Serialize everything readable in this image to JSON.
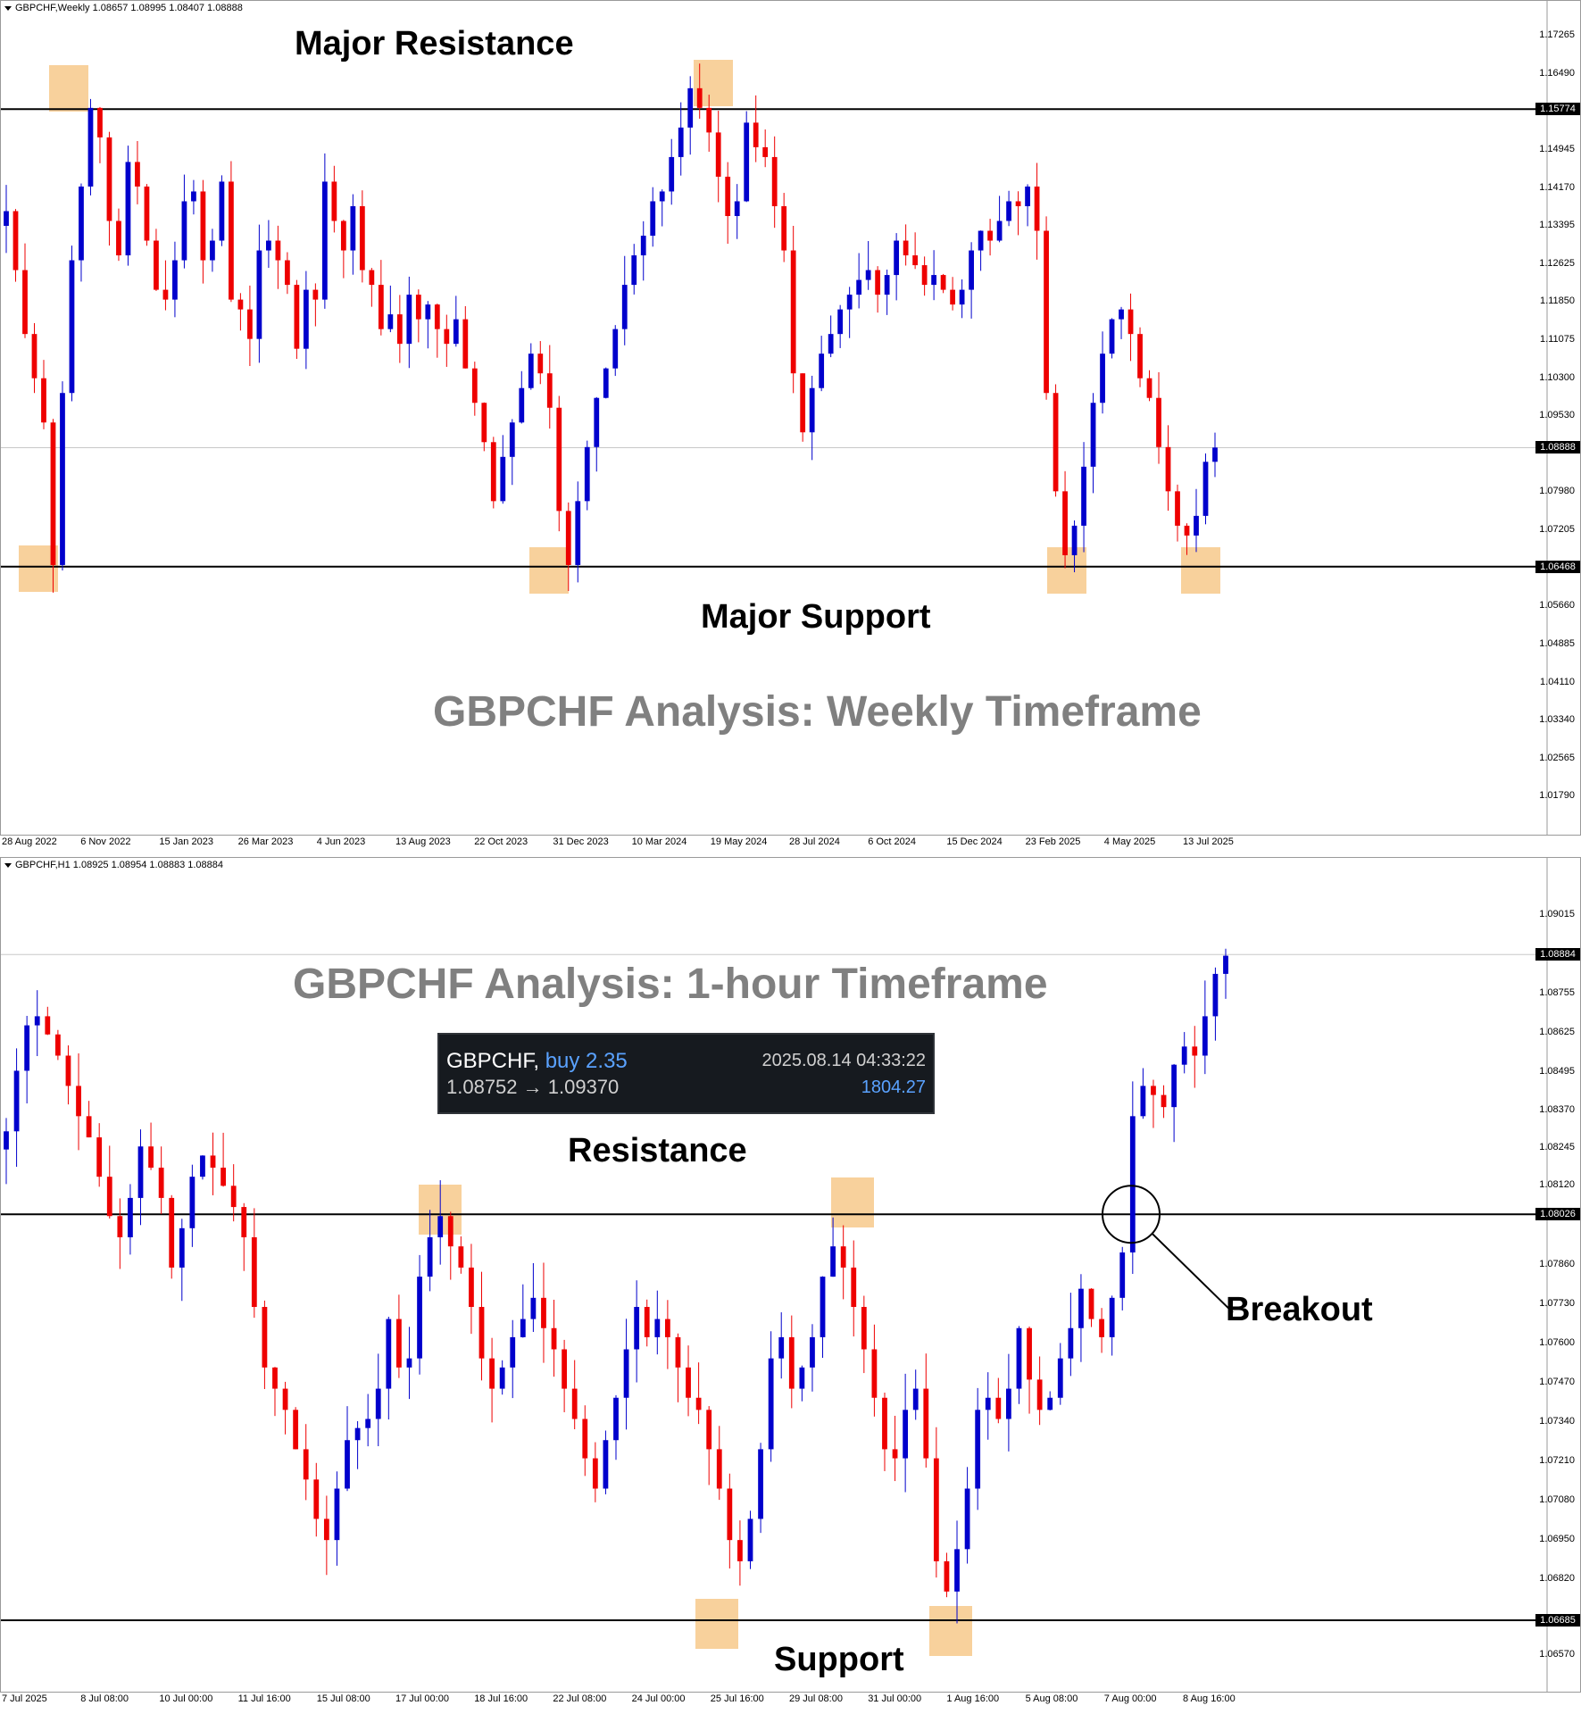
{
  "weekly": {
    "header": "GBPCHF,Weekly  1.08657 1.08995 1.08407 1.08888",
    "title": "GBPCHF Analysis: Weekly Timeframe",
    "resistance_label": "Major Resistance",
    "support_label": "Major Support",
    "resistance_tag": "1.15774",
    "support_tag": "1.06468",
    "current_tag": "1.08888",
    "y_ticks": [
      "1.17265",
      "1.16490",
      "1.15774",
      "1.14945",
      "1.14170",
      "1.13395",
      "1.12625",
      "1.11850",
      "1.11075",
      "1.10300",
      "1.09530",
      "1.08888",
      "1.07980",
      "1.07205",
      "1.06468",
      "1.05660",
      "1.04885",
      "1.04110",
      "1.03340",
      "1.02565",
      "1.01790"
    ],
    "x_ticks": [
      "28 Aug 2022",
      "6 Nov 2022",
      "15 Jan 2023",
      "26 Mar 2023",
      "4 Jun 2023",
      "13 Aug 2023",
      "22 Oct 2023",
      "31 Dec 2023",
      "10 Mar 2024",
      "19 May 2024",
      "28 Jul 2024",
      "6 Oct 2024",
      "15 Dec 2024",
      "23 Feb 2025",
      "4 May 2025",
      "13 Jul 2025"
    ]
  },
  "hourly": {
    "header": "GBPCHF,H1  1.08925 1.08954 1.08883 1.08884",
    "title": "GBPCHF Analysis: 1-hour Timeframe",
    "resistance_label": "Resistance",
    "support_label": "Support",
    "breakout_label": "Breakout",
    "resistance_tag": "1.08026",
    "support_tag": "1.06685",
    "current_tag": "1.08884",
    "y_ticks": [
      "1.09015",
      "1.08884",
      "1.08755",
      "1.08625",
      "1.08495",
      "1.08370",
      "1.08245",
      "1.08120",
      "1.08026",
      "1.07860",
      "1.07730",
      "1.07600",
      "1.07470",
      "1.07340",
      "1.07210",
      "1.07080",
      "1.06950",
      "1.06820",
      "1.06685",
      "1.06570"
    ],
    "x_ticks": [
      "7 Jul 2025",
      "8 Jul 08:00",
      "10 Jul 00:00",
      "11 Jul 16:00",
      "15 Jul 08:00",
      "17 Jul 00:00",
      "18 Jul 16:00",
      "22 Jul 08:00",
      "24 Jul 00:00",
      "25 Jul 16:00",
      "29 Jul 08:00",
      "31 Jul 00:00",
      "1 Aug 16:00",
      "5 Aug 08:00",
      "7 Aug 00:00",
      "8 Aug 16:00"
    ]
  },
  "trade": {
    "symbol": "GBPCHF,",
    "side": "buy 2.35",
    "prices": "1.08752 → 1.09370",
    "time": "2025.08.14 04:33:22",
    "profit": "1804.27"
  },
  "colors": {
    "bull": "#0000cc",
    "bear": "#ee0000",
    "highlight": "#f7c98b",
    "title_gray": "#808080"
  },
  "chart_data": [
    {
      "type": "candlestick",
      "title": "GBPCHF Analysis: Weekly Timeframe",
      "symbol": "GBPCHF",
      "timeframe": "Weekly",
      "ohlc_last": {
        "open": 1.08657,
        "high": 1.08995,
        "low": 1.08407,
        "close": 1.08888
      },
      "ylim": [
        1.0145,
        1.1765
      ],
      "levels": {
        "resistance": 1.15774,
        "support": 1.06468,
        "current": 1.08888
      },
      "highlights": [
        "Aug 2022 high",
        "Jan 2022 low",
        "Dec 2023 low",
        "May 2024 high",
        "Feb 2025 low",
        "Jul 2025 low"
      ],
      "closes": [
        1.137,
        1.125,
        1.112,
        1.103,
        1.094,
        1.065,
        1.1,
        1.127,
        1.142,
        1.158,
        1.152,
        1.135,
        1.128,
        1.147,
        1.142,
        1.131,
        1.121,
        1.119,
        1.127,
        1.139,
        1.141,
        1.127,
        1.131,
        1.143,
        1.119,
        1.117,
        1.111,
        1.129,
        1.131,
        1.127,
        1.122,
        1.109,
        1.121,
        1.119,
        1.143,
        1.135,
        1.129,
        1.138,
        1.125,
        1.122,
        1.113,
        1.116,
        1.11,
        1.12,
        1.115,
        1.118,
        1.113,
        1.11,
        1.115,
        1.105,
        1.098,
        1.09,
        1.078,
        1.087,
        1.094,
        1.101,
        1.108,
        1.104,
        1.097,
        1.076,
        1.065,
        1.078,
        1.089,
        1.099,
        1.105,
        1.113,
        1.122,
        1.128,
        1.132,
        1.139,
        1.141,
        1.148,
        1.154,
        1.162,
        1.158,
        1.153,
        1.144,
        1.136,
        1.139,
        1.155,
        1.15,
        1.148,
        1.138,
        1.129,
        1.104,
        1.092,
        1.101,
        1.108,
        1.112,
        1.117,
        1.12,
        1.123,
        1.125,
        1.12,
        1.124,
        1.131,
        1.128,
        1.126,
        1.122,
        1.124,
        1.121,
        1.118,
        1.121,
        1.129,
        1.133,
        1.131,
        1.135,
        1.139,
        1.138,
        1.142,
        1.133,
        1.1,
        1.08,
        1.067,
        1.073,
        1.085,
        1.098,
        1.108,
        1.115,
        1.117,
        1.112,
        1.103,
        1.099,
        1.089,
        1.08,
        1.073,
        1.071,
        1.075,
        1.086,
        1.0889
      ]
    },
    {
      "type": "candlestick",
      "title": "GBPCHF Analysis: 1-hour Timeframe",
      "symbol": "GBPCHF",
      "timeframe": "H1",
      "ohlc_last": {
        "open": 1.08925,
        "high": 1.08954,
        "low": 1.08883,
        "close": 1.08884
      },
      "ylim": [
        1.0652,
        1.0915
      ],
      "levels": {
        "resistance": 1.08026,
        "support": 1.06685,
        "current": 1.08884
      },
      "breakout": "7 Aug 00:00",
      "trade": {
        "symbol": "GBPCHF",
        "side": "buy",
        "volume": 2.35,
        "entry": 1.08752,
        "exit": 1.0937,
        "time": "2025.08.14 04:33:22",
        "profit": 1804.27
      },
      "closes": [
        1.083,
        1.085,
        1.0865,
        1.0868,
        1.0862,
        1.0855,
        1.0845,
        1.0835,
        1.0828,
        1.0815,
        1.0802,
        1.0795,
        1.0808,
        1.0825,
        1.0818,
        1.0808,
        1.0785,
        1.0798,
        1.0815,
        1.0822,
        1.0818,
        1.0812,
        1.0805,
        1.0795,
        1.0772,
        1.0752,
        1.0745,
        1.0738,
        1.0725,
        1.0715,
        1.0702,
        1.0695,
        1.0712,
        1.0728,
        1.0732,
        1.0735,
        1.0745,
        1.0768,
        1.0752,
        1.0755,
        1.0782,
        1.0795,
        1.0802,
        1.0792,
        1.0785,
        1.0772,
        1.0755,
        1.0745,
        1.0752,
        1.0762,
        1.0768,
        1.0775,
        1.0765,
        1.0758,
        1.0745,
        1.0735,
        1.0722,
        1.0712,
        1.0728,
        1.0742,
        1.0758,
        1.0772,
        1.0762,
        1.0768,
        1.0762,
        1.0752,
        1.0742,
        1.0738,
        1.0725,
        1.0712,
        1.0695,
        1.0688,
        1.0702,
        1.0725,
        1.0755,
        1.0762,
        1.0745,
        1.0752,
        1.0762,
        1.0782,
        1.0792,
        1.0785,
        1.0772,
        1.0758,
        1.0742,
        1.0725,
        1.0722,
        1.0738,
        1.0745,
        1.0722,
        1.0688,
        1.0678,
        1.0692,
        1.0712,
        1.0738,
        1.0742,
        1.0735,
        1.0745,
        1.0765,
        1.0748,
        1.0738,
        1.0742,
        1.0755,
        1.0765,
        1.0778,
        1.0768,
        1.0762,
        1.0775,
        1.079,
        1.0835,
        1.0845,
        1.0842,
        1.0838,
        1.0852,
        1.0858,
        1.0855,
        1.0868,
        1.0882,
        1.0888
      ]
    }
  ]
}
